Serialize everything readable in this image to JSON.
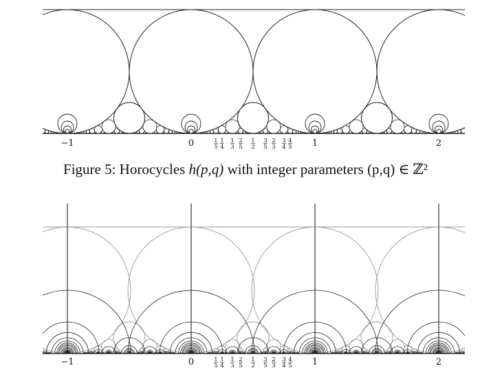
{
  "figures": [
    {
      "id": "fig5",
      "caption": {
        "prefix": "Figure 5: Horocycles ",
        "formula": "h(p,q)",
        "middle": " with integer parameters ",
        "params": "(p,q) ∈ ℤ²"
      },
      "axis_labels": [
        "−1",
        "0",
        "1",
        "2"
      ],
      "fraction_labels": [
        {
          "num": "1",
          "den": "5"
        },
        {
          "num": "1",
          "den": "4"
        },
        {
          "num": "1",
          "den": "3"
        },
        {
          "num": "2",
          "den": "5"
        },
        {
          "num": "1",
          "den": "2"
        },
        {
          "num": "3",
          "den": "5"
        },
        {
          "num": "2",
          "den": "3"
        },
        {
          "num": "3",
          "den": "4"
        },
        {
          "num": "4",
          "den": "5"
        }
      ]
    },
    {
      "id": "fig6",
      "axis_labels": [
        "−1",
        "0",
        "1",
        "2"
      ],
      "fraction_labels": [
        {
          "num": "1",
          "den": "5"
        },
        {
          "num": "1",
          "den": "4"
        },
        {
          "num": "1",
          "den": "3"
        },
        {
          "num": "2",
          "den": "5"
        },
        {
          "num": "1",
          "den": "2"
        },
        {
          "num": "3",
          "den": "5"
        },
        {
          "num": "2",
          "den": "3"
        },
        {
          "num": "3",
          "den": "4"
        },
        {
          "num": "4",
          "den": "5"
        }
      ]
    }
  ]
}
